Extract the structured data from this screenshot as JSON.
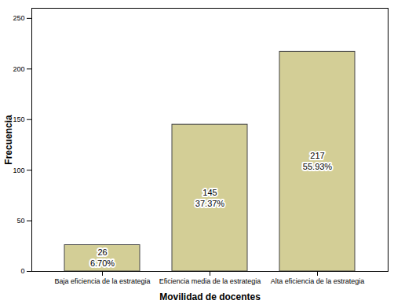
{
  "chart_data": {
    "type": "bar",
    "x_label": "Movilidad de docentes",
    "y_label": "Frecuencia",
    "categories": [
      "Baja eficiencia de la estrategia",
      "Eficiencia media de la estrategia",
      "Alta eficiencia de la estrategia"
    ],
    "values": [
      26,
      145,
      217
    ],
    "percent_labels": [
      "6.70%",
      "37.37%",
      "55.93%"
    ],
    "color": "#d3ce96",
    "ylim": [
      0,
      260
    ],
    "yticks": [
      0,
      50,
      100,
      150,
      200,
      250
    ],
    "grid": false,
    "data_labels": true
  }
}
